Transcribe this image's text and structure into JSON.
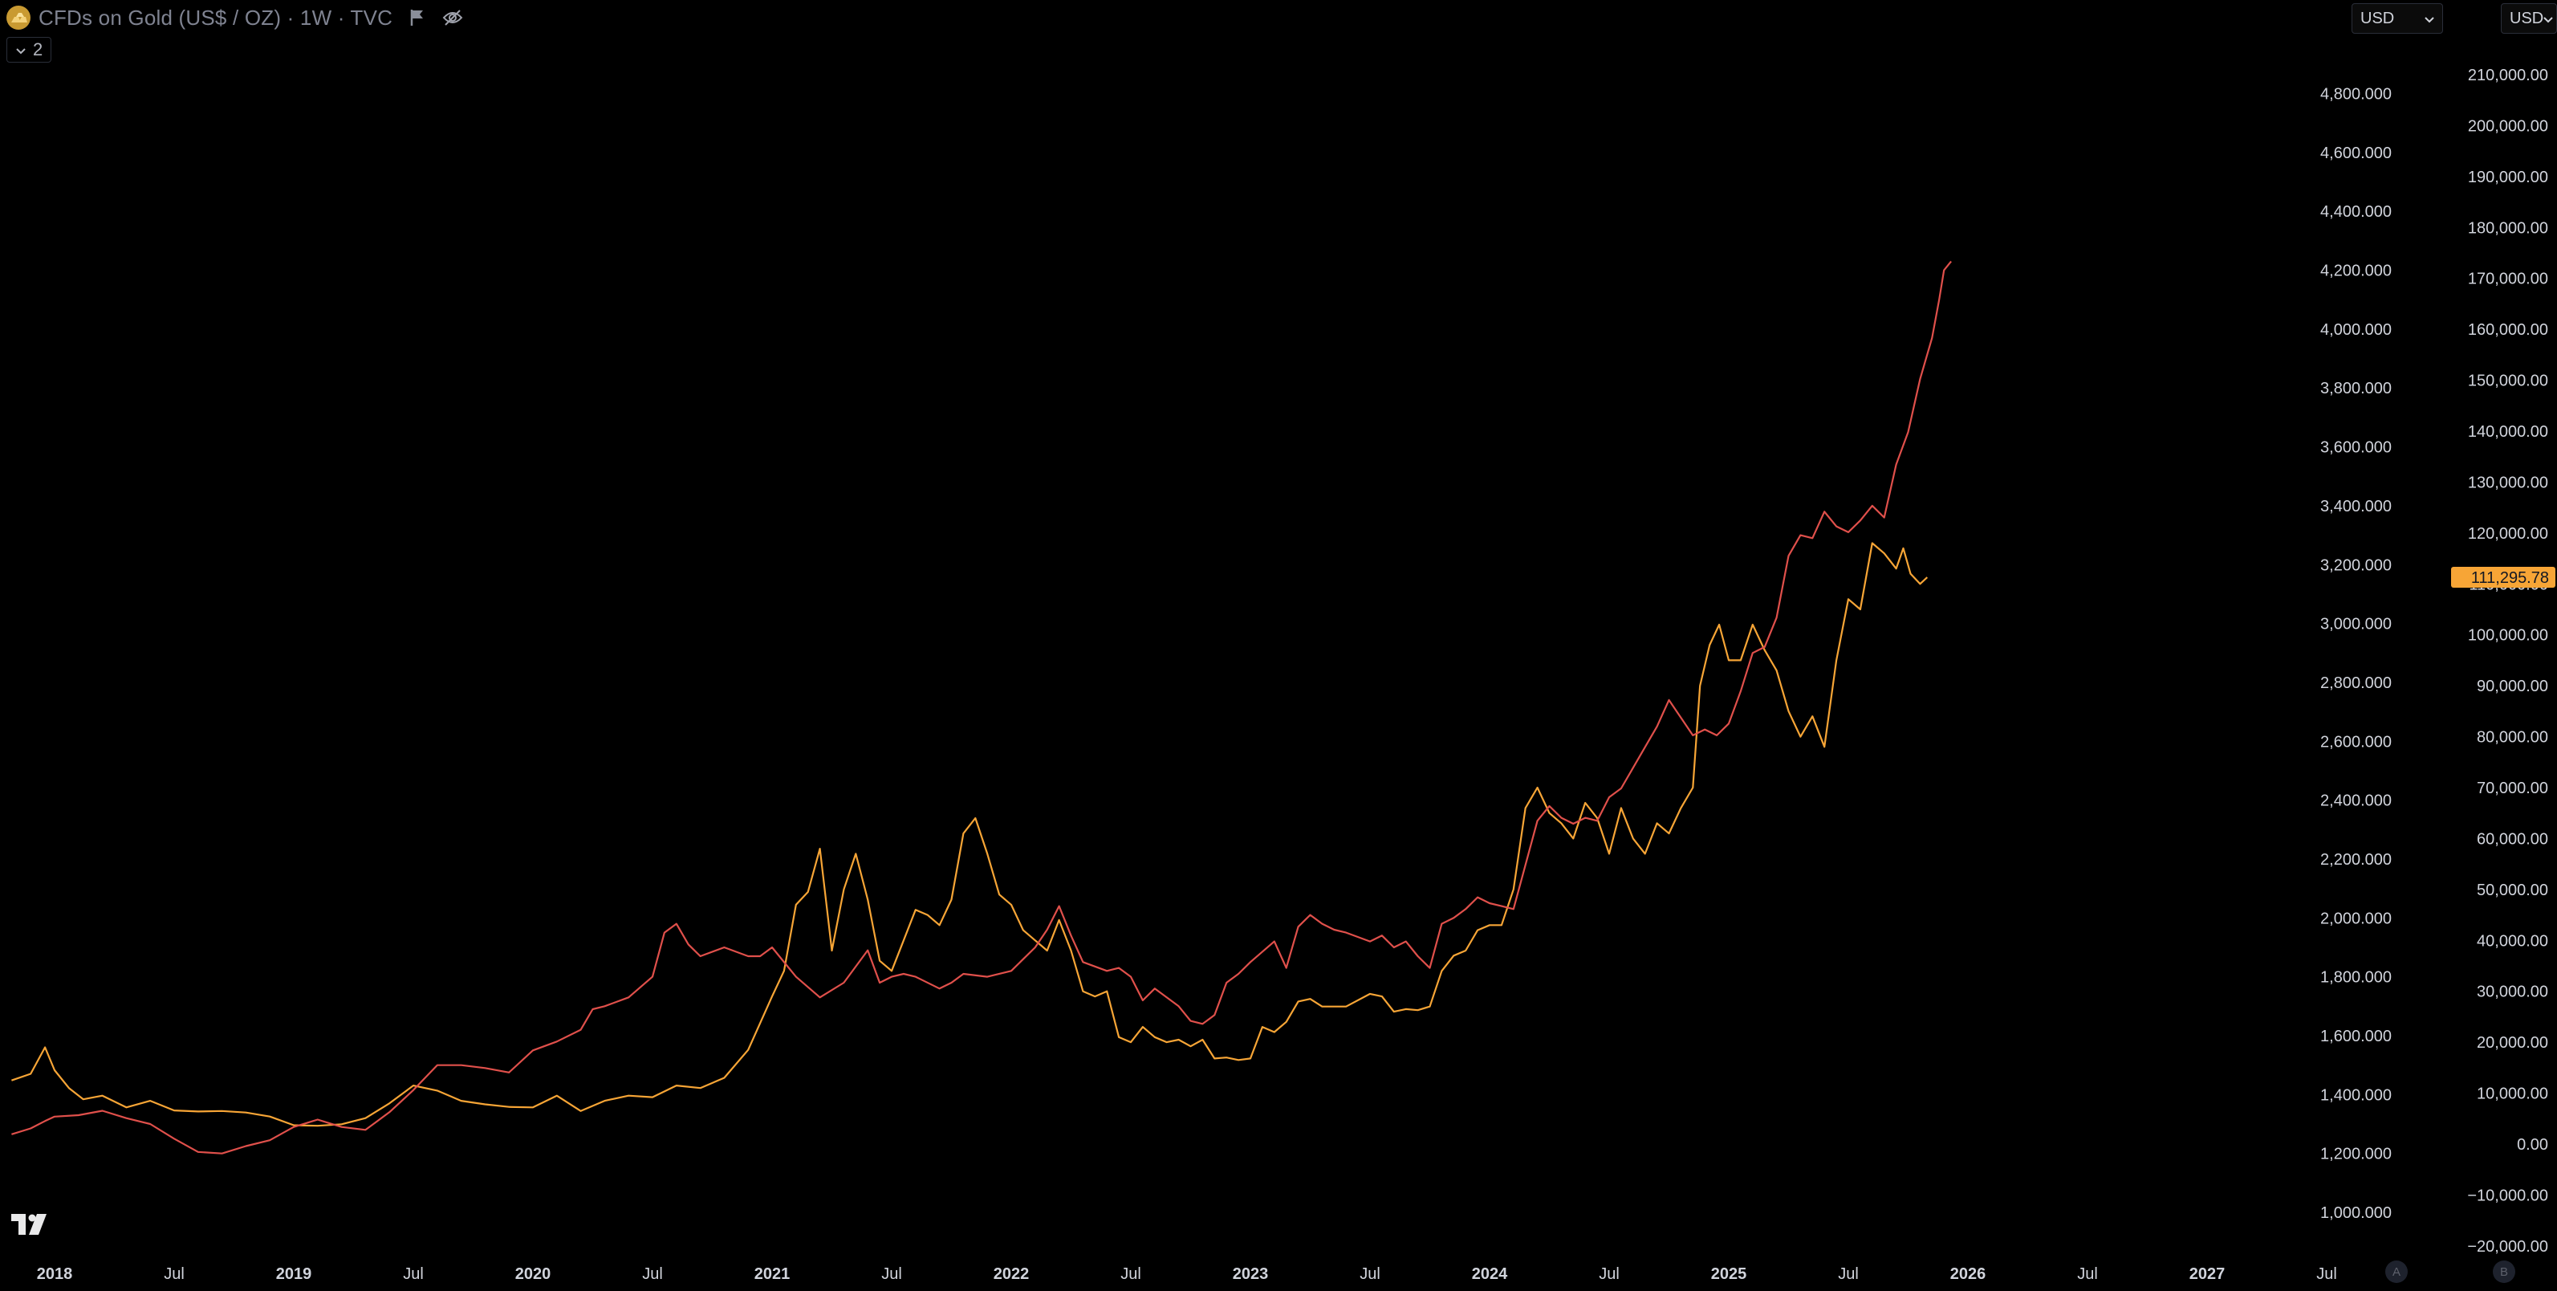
{
  "header": {
    "title": "CFDs on Gold (US$ / OZ) · 1W · TVC",
    "indicator_count": "2"
  },
  "currency_selectors": [
    "USD",
    "USD"
  ],
  "colors": {
    "background": "#000000",
    "gold_series": "#f7a536",
    "red_series": "#e0504b",
    "price_label_bg": "#f7a536",
    "axis_text": "#d1d4dc"
  },
  "chart_data": {
    "type": "line",
    "title": "CFDs on Gold (US$ / OZ) · 1W · TVC",
    "x_tick_labels": [
      "2018",
      "Jul",
      "2019",
      "Jul",
      "2020",
      "Jul",
      "2021",
      "Jul",
      "2022",
      "Jul",
      "2023",
      "Jul",
      "2024",
      "Jul",
      "2025",
      "Jul",
      "2026",
      "Jul",
      "2027",
      "Jul"
    ],
    "x_tick_years": [
      2018.0,
      2018.5,
      2019.0,
      2019.5,
      2020.0,
      2020.5,
      2021.0,
      2021.5,
      2022.0,
      2022.5,
      2023.0,
      2023.5,
      2024.0,
      2024.5,
      2025.0,
      2025.5,
      2026.0,
      2026.5,
      2027.0,
      2027.5
    ],
    "bold_ticks": [
      "2018",
      "2019",
      "2020",
      "2021",
      "2022",
      "2023",
      "2024",
      "2025",
      "2026",
      "2027"
    ],
    "left_axis": {
      "ticks": [
        1000,
        1200,
        1400,
        1600,
        1800,
        2000,
        2200,
        2400,
        2600,
        2800,
        3000,
        3200,
        3400,
        3600,
        3800,
        4000,
        4200,
        4400,
        4600,
        4800
      ],
      "tick_labels": [
        "1,000.000",
        "1,200.000",
        "1,400.000",
        "1,600.000",
        "1,800.000",
        "2,000.000",
        "2,200.000",
        "2,400.000",
        "2,600.000",
        "2,800.000",
        "3,000.000",
        "3,200.000",
        "3,400.000",
        "3,600.000",
        "3,800.000",
        "4,000.000",
        "4,200.000",
        "4,400.000",
        "4,600.000",
        "4,800.000"
      ]
    },
    "right_axis": {
      "ticks": [
        -20000,
        -10000,
        0,
        10000,
        20000,
        30000,
        40000,
        50000,
        60000,
        70000,
        80000,
        90000,
        100000,
        110000,
        120000,
        130000,
        140000,
        150000,
        160000,
        170000,
        180000,
        190000,
        200000,
        210000
      ],
      "tick_labels": [
        "−20,000.00",
        "−10,000.00",
        "0.00",
        "10,000.00",
        "20,000.00",
        "30,000.00",
        "40,000.00",
        "50,000.00",
        "60,000.00",
        "70,000.00",
        "80,000.00",
        "90,000.00",
        "100,000.00",
        "110,000.00",
        "120,000.00",
        "130,000.00",
        "140,000.00",
        "150,000.00",
        "160,000.00",
        "170,000.00",
        "180,000.00",
        "190,000.00",
        "200,000.00",
        "210,000.00"
      ]
    },
    "last_price_label": "111,295.78",
    "last_price_value": 111295.78,
    "series": [
      {
        "axis": "right",
        "color": "#f7a536",
        "points": [
          [
            2017.82,
            12500
          ],
          [
            2017.9,
            13800
          ],
          [
            2017.96,
            19000
          ],
          [
            2018.0,
            14500
          ],
          [
            2018.06,
            11000
          ],
          [
            2018.12,
            8800
          ],
          [
            2018.2,
            9500
          ],
          [
            2018.3,
            7200
          ],
          [
            2018.4,
            8500
          ],
          [
            2018.5,
            6600
          ],
          [
            2018.6,
            6400
          ],
          [
            2018.7,
            6500
          ],
          [
            2018.8,
            6200
          ],
          [
            2018.9,
            5400
          ],
          [
            2019.0,
            3700
          ],
          [
            2019.1,
            3600
          ],
          [
            2019.2,
            3900
          ],
          [
            2019.3,
            5100
          ],
          [
            2019.4,
            8000
          ],
          [
            2019.5,
            11500
          ],
          [
            2019.6,
            10500
          ],
          [
            2019.7,
            8500
          ],
          [
            2019.8,
            7800
          ],
          [
            2019.9,
            7300
          ],
          [
            2020.0,
            7200
          ],
          [
            2020.1,
            9500
          ],
          [
            2020.2,
            6500
          ],
          [
            2020.3,
            8500
          ],
          [
            2020.4,
            9500
          ],
          [
            2020.5,
            9200
          ],
          [
            2020.6,
            11500
          ],
          [
            2020.7,
            11000
          ],
          [
            2020.8,
            13000
          ],
          [
            2020.9,
            18500
          ],
          [
            2021.0,
            29000
          ],
          [
            2021.05,
            34000
          ],
          [
            2021.1,
            47000
          ],
          [
            2021.15,
            49500
          ],
          [
            2021.2,
            58000
          ],
          [
            2021.25,
            38000
          ],
          [
            2021.3,
            50000
          ],
          [
            2021.35,
            57000
          ],
          [
            2021.4,
            48000
          ],
          [
            2021.45,
            36000
          ],
          [
            2021.5,
            34000
          ],
          [
            2021.55,
            40000
          ],
          [
            2021.6,
            46000
          ],
          [
            2021.65,
            45000
          ],
          [
            2021.7,
            43000
          ],
          [
            2021.75,
            48000
          ],
          [
            2021.8,
            61000
          ],
          [
            2021.85,
            64000
          ],
          [
            2021.9,
            57000
          ],
          [
            2021.95,
            49000
          ],
          [
            2022.0,
            47000
          ],
          [
            2022.05,
            42000
          ],
          [
            2022.1,
            40000
          ],
          [
            2022.15,
            38000
          ],
          [
            2022.2,
            44000
          ],
          [
            2022.25,
            38000
          ],
          [
            2022.3,
            30000
          ],
          [
            2022.35,
            29000
          ],
          [
            2022.4,
            30000
          ],
          [
            2022.45,
            21000
          ],
          [
            2022.5,
            20000
          ],
          [
            2022.55,
            23000
          ],
          [
            2022.6,
            21000
          ],
          [
            2022.65,
            20000
          ],
          [
            2022.7,
            20500
          ],
          [
            2022.75,
            19200
          ],
          [
            2022.8,
            20500
          ],
          [
            2022.85,
            16800
          ],
          [
            2022.9,
            17000
          ],
          [
            2022.95,
            16500
          ],
          [
            2023.0,
            16800
          ],
          [
            2023.05,
            23000
          ],
          [
            2023.1,
            22000
          ],
          [
            2023.15,
            24000
          ],
          [
            2023.2,
            28000
          ],
          [
            2023.25,
            28500
          ],
          [
            2023.3,
            27000
          ],
          [
            2023.4,
            27000
          ],
          [
            2023.5,
            29500
          ],
          [
            2023.55,
            29000
          ],
          [
            2023.6,
            26000
          ],
          [
            2023.65,
            26500
          ],
          [
            2023.7,
            26300
          ],
          [
            2023.75,
            27000
          ],
          [
            2023.8,
            34000
          ],
          [
            2023.85,
            37000
          ],
          [
            2023.9,
            38000
          ],
          [
            2023.95,
            42000
          ],
          [
            2024.0,
            43000
          ],
          [
            2024.05,
            43000
          ],
          [
            2024.1,
            50000
          ],
          [
            2024.15,
            66000
          ],
          [
            2024.2,
            70000
          ],
          [
            2024.25,
            65000
          ],
          [
            2024.3,
            63000
          ],
          [
            2024.35,
            60000
          ],
          [
            2024.4,
            67000
          ],
          [
            2024.45,
            64000
          ],
          [
            2024.5,
            57000
          ],
          [
            2024.55,
            66000
          ],
          [
            2024.6,
            60000
          ],
          [
            2024.65,
            57000
          ],
          [
            2024.7,
            63000
          ],
          [
            2024.75,
            61000
          ],
          [
            2024.8,
            66000
          ],
          [
            2024.85,
            70000
          ],
          [
            2024.88,
            90000
          ],
          [
            2024.92,
            98000
          ],
          [
            2024.96,
            102000
          ],
          [
            2025.0,
            95000
          ],
          [
            2025.05,
            95000
          ],
          [
            2025.1,
            102000
          ],
          [
            2025.15,
            97000
          ],
          [
            2025.2,
            93000
          ],
          [
            2025.25,
            85000
          ],
          [
            2025.3,
            80000
          ],
          [
            2025.35,
            84000
          ],
          [
            2025.4,
            78000
          ],
          [
            2025.45,
            95000
          ],
          [
            2025.5,
            107000
          ],
          [
            2025.55,
            105000
          ],
          [
            2025.6,
            118000
          ],
          [
            2025.65,
            116000
          ],
          [
            2025.7,
            113000
          ],
          [
            2025.73,
            117000
          ],
          [
            2025.76,
            112000
          ],
          [
            2025.8,
            110000
          ],
          [
            2025.83,
            111295.78
          ]
        ]
      },
      {
        "axis": "left",
        "color": "#e0504b",
        "points": [
          [
            2017.82,
            1265
          ],
          [
            2017.9,
            1285
          ],
          [
            2017.96,
            1310
          ],
          [
            2018.0,
            1325
          ],
          [
            2018.1,
            1330
          ],
          [
            2018.2,
            1345
          ],
          [
            2018.3,
            1320
          ],
          [
            2018.4,
            1300
          ],
          [
            2018.5,
            1250
          ],
          [
            2018.6,
            1205
          ],
          [
            2018.7,
            1200
          ],
          [
            2018.8,
            1225
          ],
          [
            2018.9,
            1245
          ],
          [
            2019.0,
            1290
          ],
          [
            2019.1,
            1315
          ],
          [
            2019.2,
            1290
          ],
          [
            2019.3,
            1280
          ],
          [
            2019.4,
            1340
          ],
          [
            2019.5,
            1415
          ],
          [
            2019.6,
            1500
          ],
          [
            2019.7,
            1500
          ],
          [
            2019.8,
            1490
          ],
          [
            2019.9,
            1475
          ],
          [
            2020.0,
            1550
          ],
          [
            2020.1,
            1580
          ],
          [
            2020.2,
            1620
          ],
          [
            2020.25,
            1690
          ],
          [
            2020.3,
            1700
          ],
          [
            2020.4,
            1730
          ],
          [
            2020.5,
            1800
          ],
          [
            2020.55,
            1950
          ],
          [
            2020.6,
            1980
          ],
          [
            2020.65,
            1910
          ],
          [
            2020.7,
            1870
          ],
          [
            2020.8,
            1900
          ],
          [
            2020.9,
            1870
          ],
          [
            2020.95,
            1870
          ],
          [
            2021.0,
            1900
          ],
          [
            2021.1,
            1800
          ],
          [
            2021.2,
            1730
          ],
          [
            2021.3,
            1780
          ],
          [
            2021.4,
            1890
          ],
          [
            2021.45,
            1780
          ],
          [
            2021.5,
            1800
          ],
          [
            2021.55,
            1810
          ],
          [
            2021.6,
            1800
          ],
          [
            2021.7,
            1760
          ],
          [
            2021.75,
            1780
          ],
          [
            2021.8,
            1810
          ],
          [
            2021.9,
            1800
          ],
          [
            2022.0,
            1820
          ],
          [
            2022.1,
            1900
          ],
          [
            2022.15,
            1960
          ],
          [
            2022.2,
            2040
          ],
          [
            2022.25,
            1940
          ],
          [
            2022.3,
            1850
          ],
          [
            2022.4,
            1820
          ],
          [
            2022.45,
            1830
          ],
          [
            2022.5,
            1800
          ],
          [
            2022.55,
            1720
          ],
          [
            2022.6,
            1760
          ],
          [
            2022.7,
            1700
          ],
          [
            2022.75,
            1650
          ],
          [
            2022.8,
            1640
          ],
          [
            2022.85,
            1670
          ],
          [
            2022.9,
            1780
          ],
          [
            2022.95,
            1810
          ],
          [
            2023.0,
            1850
          ],
          [
            2023.1,
            1920
          ],
          [
            2023.15,
            1830
          ],
          [
            2023.2,
            1970
          ],
          [
            2023.25,
            2010
          ],
          [
            2023.3,
            1980
          ],
          [
            2023.35,
            1960
          ],
          [
            2023.4,
            1950
          ],
          [
            2023.5,
            1920
          ],
          [
            2023.55,
            1940
          ],
          [
            2023.6,
            1900
          ],
          [
            2023.65,
            1920
          ],
          [
            2023.7,
            1870
          ],
          [
            2023.75,
            1830
          ],
          [
            2023.8,
            1980
          ],
          [
            2023.85,
            2000
          ],
          [
            2023.9,
            2030
          ],
          [
            2023.95,
            2070
          ],
          [
            2024.0,
            2050
          ],
          [
            2024.05,
            2040
          ],
          [
            2024.1,
            2030
          ],
          [
            2024.15,
            2180
          ],
          [
            2024.2,
            2330
          ],
          [
            2024.25,
            2380
          ],
          [
            2024.3,
            2340
          ],
          [
            2024.35,
            2320
          ],
          [
            2024.4,
            2340
          ],
          [
            2024.45,
            2330
          ],
          [
            2024.5,
            2410
          ],
          [
            2024.55,
            2440
          ],
          [
            2024.6,
            2510
          ],
          [
            2024.65,
            2580
          ],
          [
            2024.7,
            2650
          ],
          [
            2024.75,
            2740
          ],
          [
            2024.8,
            2680
          ],
          [
            2024.85,
            2620
          ],
          [
            2024.9,
            2640
          ],
          [
            2024.95,
            2620
          ],
          [
            2025.0,
            2660
          ],
          [
            2025.05,
            2770
          ],
          [
            2025.1,
            2900
          ],
          [
            2025.15,
            2920
          ],
          [
            2025.2,
            3020
          ],
          [
            2025.25,
            3230
          ],
          [
            2025.3,
            3300
          ],
          [
            2025.35,
            3290
          ],
          [
            2025.4,
            3380
          ],
          [
            2025.45,
            3330
          ],
          [
            2025.5,
            3310
          ],
          [
            2025.55,
            3350
          ],
          [
            2025.6,
            3400
          ],
          [
            2025.65,
            3360
          ],
          [
            2025.7,
            3540
          ],
          [
            2025.75,
            3650
          ],
          [
            2025.8,
            3830
          ],
          [
            2025.85,
            3970
          ],
          [
            2025.88,
            4100
          ],
          [
            2025.9,
            4200
          ],
          [
            2025.93,
            4230
          ]
        ]
      }
    ]
  }
}
